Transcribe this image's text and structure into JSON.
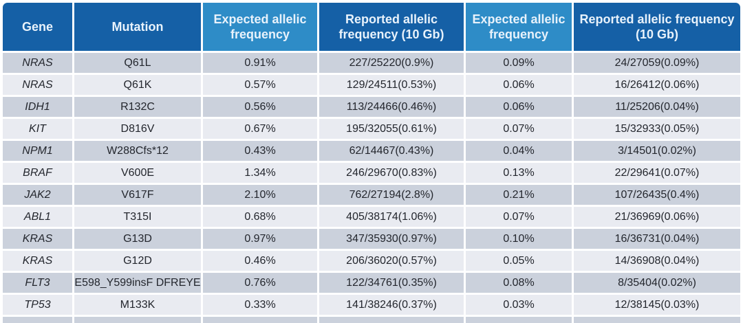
{
  "table": {
    "headers": [
      {
        "label": "Gene",
        "style": "dark"
      },
      {
        "label": "Mutation",
        "style": "dark"
      },
      {
        "label": "Expected allelic frequency",
        "style": "light"
      },
      {
        "label": "Reported allelic frequency (10 Gb)",
        "style": "dark"
      },
      {
        "label": "Expected allelic frequency",
        "style": "light"
      },
      {
        "label": "Reported allelic frequency (10 Gb)",
        "style": "dark"
      }
    ],
    "rows": [
      {
        "gene": "NRAS",
        "mutation": "Q61L",
        "expected_af_1": "0.91%",
        "reported_af_1": "227/25220(0.9%)",
        "expected_af_2": "0.09%",
        "reported_af_2": "24/27059(0.09%)"
      },
      {
        "gene": "NRAS",
        "mutation": "Q61K",
        "expected_af_1": "0.57%",
        "reported_af_1": "129/24511(0.53%)",
        "expected_af_2": "0.06%",
        "reported_af_2": "16/26412(0.06%)"
      },
      {
        "gene": "IDH1",
        "mutation": "R132C",
        "expected_af_1": "0.56%",
        "reported_af_1": "113/24466(0.46%)",
        "expected_af_2": "0.06%",
        "reported_af_2": "11/25206(0.04%)"
      },
      {
        "gene": "KIT",
        "mutation": "D816V",
        "expected_af_1": "0.67%",
        "reported_af_1": "195/32055(0.61%)",
        "expected_af_2": "0.07%",
        "reported_af_2": "15/32933(0.05%)"
      },
      {
        "gene": "NPM1",
        "mutation": "W288Cfs*12",
        "expected_af_1": "0.43%",
        "reported_af_1": "62/14467(0.43%)",
        "expected_af_2": "0.04%",
        "reported_af_2": "3/14501(0.02%)"
      },
      {
        "gene": "BRAF",
        "mutation": "V600E",
        "expected_af_1": "1.34%",
        "reported_af_1": "246/29670(0.83%)",
        "expected_af_2": "0.13%",
        "reported_af_2": "22/29641(0.07%)"
      },
      {
        "gene": "JAK2",
        "mutation": "V617F",
        "expected_af_1": "2.10%",
        "reported_af_1": "762/27194(2.8%)",
        "expected_af_2": "0.21%",
        "reported_af_2": "107/26435(0.4%)"
      },
      {
        "gene": "ABL1",
        "mutation": "T315I",
        "expected_af_1": "0.68%",
        "reported_af_1": "405/38174(1.06%)",
        "expected_af_2": "0.07%",
        "reported_af_2": "21/36969(0.06%)"
      },
      {
        "gene": "KRAS",
        "mutation": "G13D",
        "expected_af_1": "0.97%",
        "reported_af_1": "347/35930(0.97%)",
        "expected_af_2": "0.10%",
        "reported_af_2": "16/36731(0.04%)"
      },
      {
        "gene": "KRAS",
        "mutation": "G12D",
        "expected_af_1": "0.46%",
        "reported_af_1": "206/36020(0.57%)",
        "expected_af_2": "0.05%",
        "reported_af_2": "14/36908(0.04%)"
      },
      {
        "gene": "FLT3",
        "mutation": "E598_Y599insF DFREYE",
        "expected_af_1": "0.76%",
        "reported_af_1": "122/34761(0.35%)",
        "expected_af_2": "0.08%",
        "reported_af_2": "8/35404(0.02%)"
      },
      {
        "gene": "TP53",
        "mutation": "M133K",
        "expected_af_1": "0.33%",
        "reported_af_1": "141/38246(0.37%)",
        "expected_af_2": "0.03%",
        "reported_af_2": "12/38145(0.03%)"
      }
    ]
  },
  "colors": {
    "header_dark_blue": "#1560a6",
    "header_light_blue": "#2e8cc7",
    "header_text": "#e8f2fb",
    "row_gray": "#cbd1dc",
    "row_light": "#e9ebf1",
    "body_text": "#23262d",
    "divider_white": "#ffffff"
  },
  "chart_data": {
    "type": "table",
    "columns": [
      "Gene",
      "Mutation",
      "Expected allelic frequency",
      "Reported allelic frequency (10 Gb)",
      "Expected allelic frequency",
      "Reported allelic frequency (10 Gb)"
    ],
    "rows": [
      [
        "NRAS",
        "Q61L",
        "0.91%",
        "227/25220(0.9%)",
        "0.09%",
        "24/27059(0.09%)"
      ],
      [
        "NRAS",
        "Q61K",
        "0.57%",
        "129/24511(0.53%)",
        "0.06%",
        "16/26412(0.06%)"
      ],
      [
        "IDH1",
        "R132C",
        "0.56%",
        "113/24466(0.46%)",
        "0.06%",
        "11/25206(0.04%)"
      ],
      [
        "KIT",
        "D816V",
        "0.67%",
        "195/32055(0.61%)",
        "0.07%",
        "15/32933(0.05%)"
      ],
      [
        "NPM1",
        "W288Cfs*12",
        "0.43%",
        "62/14467(0.43%)",
        "0.04%",
        "3/14501(0.02%)"
      ],
      [
        "BRAF",
        "V600E",
        "1.34%",
        "246/29670(0.83%)",
        "0.13%",
        "22/29641(0.07%)"
      ],
      [
        "JAK2",
        "V617F",
        "2.10%",
        "762/27194(2.8%)",
        "0.21%",
        "107/26435(0.4%)"
      ],
      [
        "ABL1",
        "T315I",
        "0.68%",
        "405/38174(1.06%)",
        "0.07%",
        "21/36969(0.06%)"
      ],
      [
        "KRAS",
        "G13D",
        "0.97%",
        "347/35930(0.97%)",
        "0.10%",
        "16/36731(0.04%)"
      ],
      [
        "KRAS",
        "G12D",
        "0.46%",
        "206/36020(0.57%)",
        "0.05%",
        "14/36908(0.04%)"
      ],
      [
        "FLT3",
        "E598_Y599insF DFREYE",
        "0.76%",
        "122/34761(0.35%)",
        "0.08%",
        "8/35404(0.02%)"
      ],
      [
        "TP53",
        "M133K",
        "0.33%",
        "141/38246(0.37%)",
        "0.03%",
        "12/38145(0.03%)"
      ]
    ]
  }
}
